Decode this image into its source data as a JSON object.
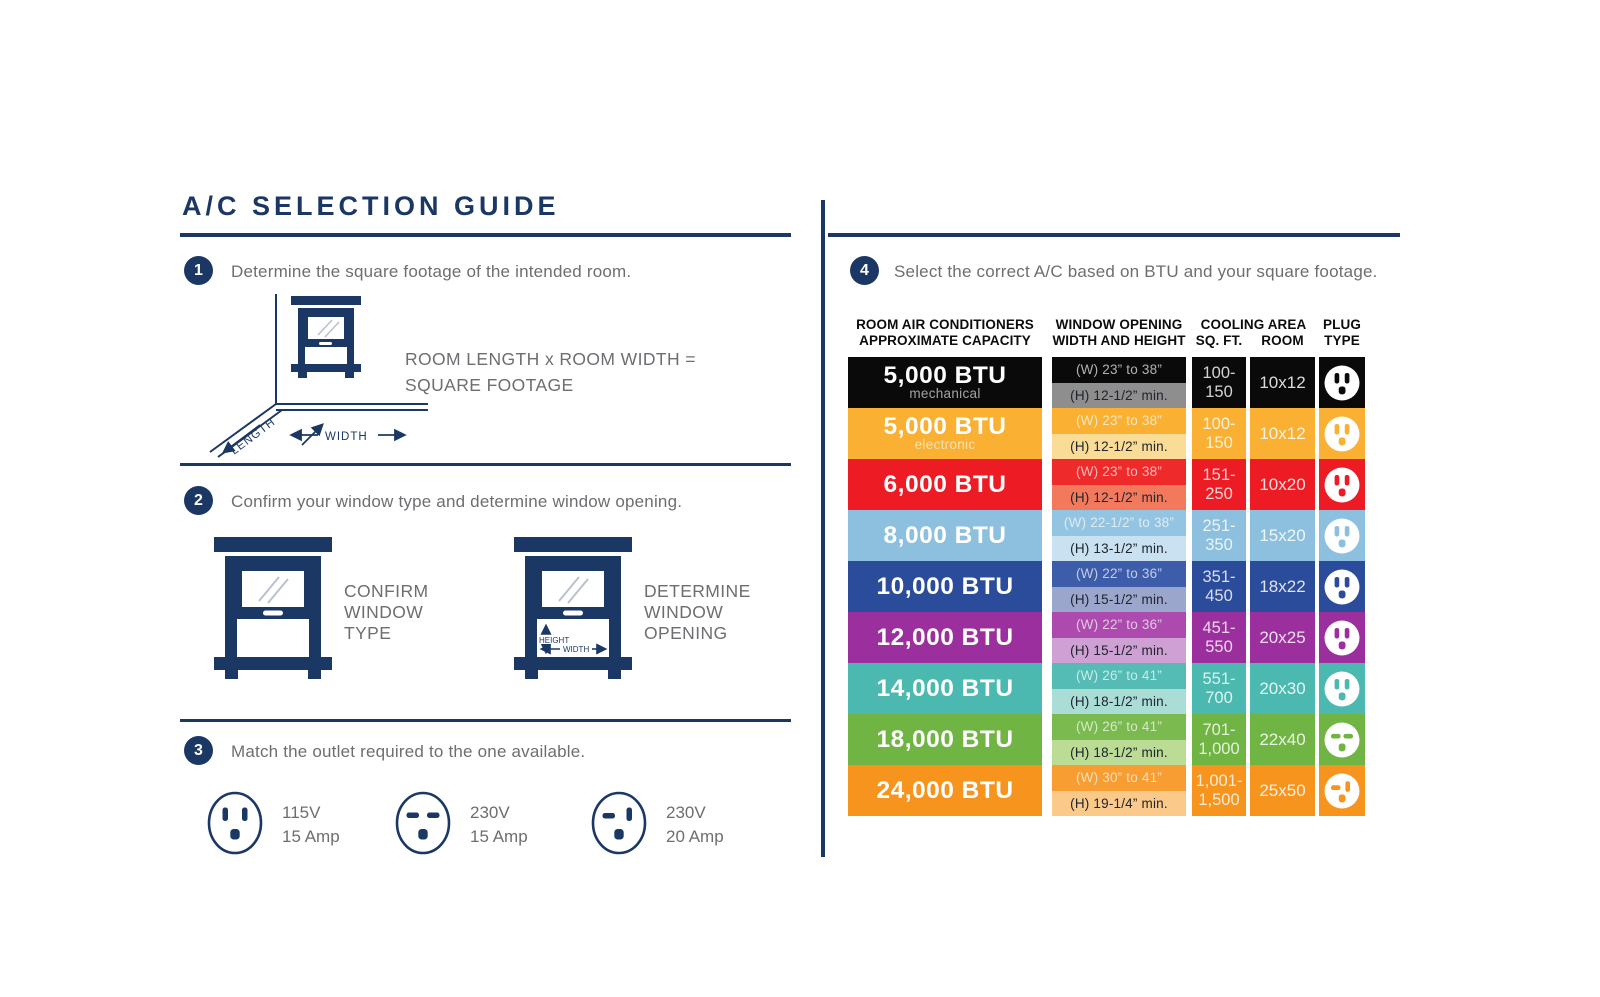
{
  "title": "A/C SELECTION GUIDE",
  "steps": [
    {
      "num": "1",
      "text": "Determine the square footage of the intended room."
    },
    {
      "num": "2",
      "text": "Confirm your window type and determine window opening."
    },
    {
      "num": "3",
      "text": "Match the outlet required to the one available."
    },
    {
      "num": "4",
      "text": "Select the correct A/C based on BTU and your square footage."
    }
  ],
  "step1": {
    "formula_line1": "ROOM LENGTH x ROOM WIDTH =",
    "formula_line2": "SQUARE FOOTAGE",
    "width_label": "WIDTH",
    "length_label": "LENGTH"
  },
  "step2": {
    "left_caption": [
      "CONFIRM",
      "WINDOW",
      "TYPE"
    ],
    "right_caption": [
      "DETERMINE",
      "WINDOW",
      "OPENING"
    ],
    "height_label": "HEIGHT",
    "width_label": "WIDTH"
  },
  "step3": {
    "outlets": [
      {
        "type": "A",
        "volts": "115V",
        "amps": "15 Amp"
      },
      {
        "type": "B",
        "volts": "230V",
        "amps": "15 Amp"
      },
      {
        "type": "C",
        "volts": "230V",
        "amps": "20 Amp"
      }
    ]
  },
  "table": {
    "headers": {
      "capacity": [
        "ROOM AIR CONDITIONERS",
        "APPROXIMATE CAPACITY"
      ],
      "window": [
        "WINDOW OPENING",
        "WIDTH AND HEIGHT"
      ],
      "cooling": "COOLING AREA",
      "sqft": "SQ. FT.",
      "room": "ROOM",
      "plug": [
        "PLUG",
        "TYPE"
      ]
    },
    "rows": [
      {
        "btu": "5,000 BTU",
        "sub": "mechanical",
        "w": "(W) 23” to 38”",
        "h": "(H) 12-1/2” min.",
        "sqft": [
          "100-",
          "150"
        ],
        "room": "10x12",
        "plug": "A",
        "bg": "#0a0a0a",
        "wBg": "#0a0a0a",
        "hBg": "#8e8e8e"
      },
      {
        "btu": "5,000 BTU",
        "sub": "electronic",
        "w": "(W) 23” to 38”",
        "h": "(H) 12-1/2” min.",
        "sqft": [
          "100-",
          "150"
        ],
        "room": "10x12",
        "plug": "A",
        "bg": "#f9b033",
        "wBg": "#f9b033",
        "hBg": "#fbdc96"
      },
      {
        "btu": "6,000 BTU",
        "sub": "",
        "w": "(W) 23” to 38”",
        "h": "(H) 12-1/2” min.",
        "sqft": [
          "151-",
          "250"
        ],
        "room": "10x20",
        "plug": "A",
        "bg": "#ed1c24",
        "wBg": "#ee2a2a",
        "hBg": "#f3795d"
      },
      {
        "btu": "8,000 BTU",
        "sub": "",
        "w": "(W) 22-1/2” to 38”",
        "h": "(H) 13-1/2” min.",
        "sqft": [
          "251-",
          "350"
        ],
        "room": "15x20",
        "plug": "A",
        "bg": "#8dc0df",
        "wBg": "#93c4e1",
        "hBg": "#c9e1f0"
      },
      {
        "btu": "10,000 BTU",
        "sub": "",
        "w": "(W) 22” to 36”",
        "h": "(H) 15-1/2” min.",
        "sqft": [
          "351-",
          "450"
        ],
        "room": "18x22",
        "plug": "A",
        "bg": "#2b4b9b",
        "wBg": "#3d5dab",
        "hBg": "#9ba6cc"
      },
      {
        "btu": "12,000 BTU",
        "sub": "",
        "w": "(W) 22” to 36”",
        "h": "(H) 15-1/2” min.",
        "sqft": [
          "451-",
          "550"
        ],
        "room": "20x25",
        "plug": "A",
        "bg": "#9c2f9e",
        "wBg": "#ac4bad",
        "hBg": "#cfa0d4"
      },
      {
        "btu": "14,000 BTU",
        "sub": "",
        "w": "(W) 26” to 41”",
        "h": "(H) 18-1/2” min.",
        "sqft": [
          "551-",
          "700"
        ],
        "room": "20x30",
        "plug": "A",
        "bg": "#4cb9b1",
        "wBg": "#54bcb4",
        "hBg": "#abddd7"
      },
      {
        "btu": "18,000 BTU",
        "sub": "",
        "w": "(W) 26” to 41”",
        "h": "(H) 18-1/2” min.",
        "sqft": [
          "701-",
          "1,000"
        ],
        "room": "22x40",
        "plug": "B",
        "bg": "#70b443",
        "wBg": "#7aba4e",
        "hBg": "#badc95"
      },
      {
        "btu": "24,000 BTU",
        "sub": "",
        "w": "(W) 30” to 41”",
        "h": "(H) 19-1/4” min.",
        "sqft": [
          "1,001-",
          "1,500"
        ],
        "room": "25x50",
        "plug": "C",
        "bg": "#f7941e",
        "wBg": "#f89d32",
        "hBg": "#fbca8a"
      }
    ]
  },
  "colors": {
    "navy": "#1b3865",
    "gray_text": "#6d6e71"
  }
}
